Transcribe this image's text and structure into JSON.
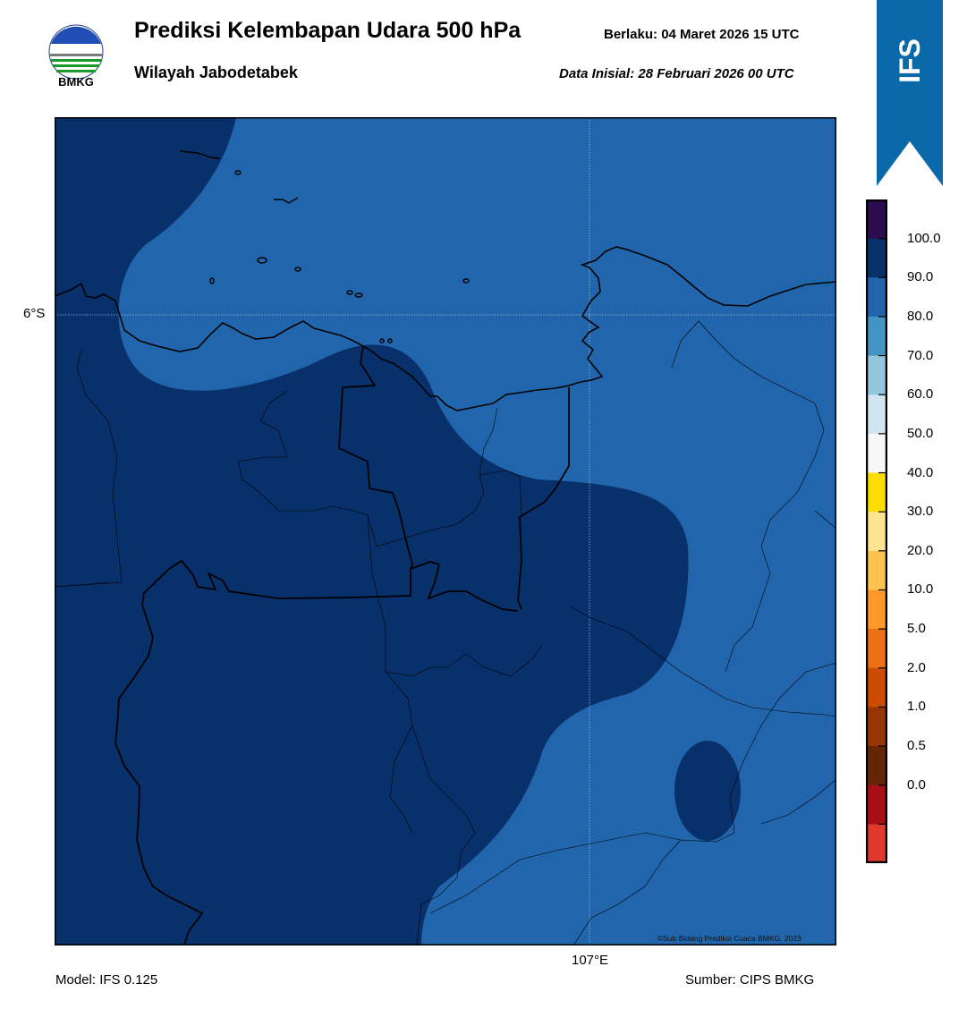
{
  "header": {
    "title": "Prediksi Kelembapan Udara 500 hPa",
    "subtitle": "Wilayah Jabodetabek",
    "valid_label": "Berlaku:  04 Maret 2026 15 UTC",
    "init_label": "Data Inisial:  28 Februari 2026 00 UTC"
  },
  "logo": {
    "text": "BMKG"
  },
  "model_tag": {
    "text": "IFS",
    "color": "#0b68a9"
  },
  "axes": {
    "lat_label": "6°S",
    "lon_label": "107°E"
  },
  "colorbar": {
    "ticks": [
      "100.0",
      "90.0",
      "80.0",
      "70.0",
      "60.0",
      "50.0",
      "40.0",
      "30.0",
      "20.0",
      "10.0",
      "5.0",
      "2.0",
      "1.0",
      "0.5",
      "0.0"
    ],
    "colors_top_to_bottom": [
      "#2c0b4e",
      "#08306b",
      "#2166ac",
      "#4393c3",
      "#92c5de",
      "#d1e5f0",
      "#f7f7f7",
      "#ffdd00",
      "#fee391",
      "#fec44f",
      "#fe9929",
      "#ec7014",
      "#cc4c02",
      "#993404",
      "#662506",
      "#a50f15",
      "#e03a2d"
    ]
  },
  "map": {
    "colors": {
      "humid_90_100": "#08306b",
      "humid_80_90": "#2166ac"
    }
  },
  "footer": {
    "model": "Model: IFS 0.125",
    "source": "Sumber: CIPS BMKG",
    "credit": "©Sub Bidang Prediksi Cuaca BMKG, 2023"
  }
}
